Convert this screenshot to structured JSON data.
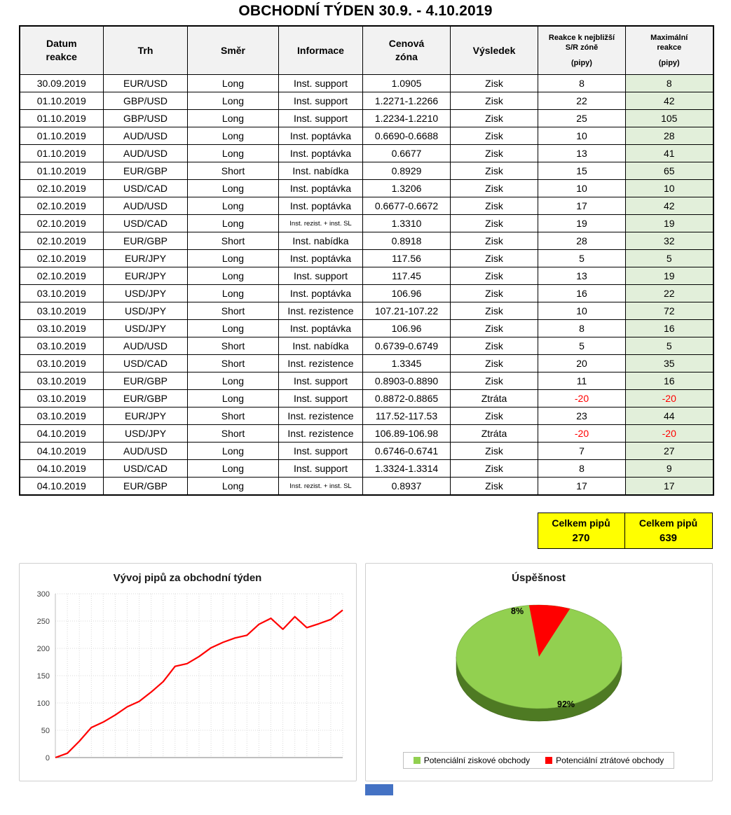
{
  "title": "OBCHODNÍ TÝDEN 30.9. - 4.10.2019",
  "colors": {
    "header_bg": "#f2f2f2",
    "max_col_bg": "#e2efda",
    "loss_text": "#ff0000",
    "summary_bg": "#ffff00"
  },
  "table": {
    "headers": [
      {
        "label": "Datum\nreakce",
        "sub": ""
      },
      {
        "label": "Trh",
        "sub": ""
      },
      {
        "label": "Směr",
        "sub": ""
      },
      {
        "label": "Informace",
        "sub": ""
      },
      {
        "label": "Cenová\nzóna",
        "sub": ""
      },
      {
        "label": "Výsledek",
        "sub": ""
      },
      {
        "label": "Reakce k nejbližší\nS/R zóně",
        "sub": "(pipy)"
      },
      {
        "label": "Maximální\nreakce",
        "sub": "(pipy)"
      }
    ],
    "rows": [
      [
        "30.09.2019",
        "EUR/USD",
        "Long",
        "Inst. support",
        "1.0905",
        "Zisk",
        "8",
        "8"
      ],
      [
        "01.10.2019",
        "GBP/USD",
        "Long",
        "Inst. support",
        "1.2271-1.2266",
        "Zisk",
        "22",
        "42"
      ],
      [
        "01.10.2019",
        "GBP/USD",
        "Long",
        "Inst. support",
        "1.2234-1.2210",
        "Zisk",
        "25",
        "105"
      ],
      [
        "01.10.2019",
        "AUD/USD",
        "Long",
        "Inst. poptávka",
        "0.6690-0.6688",
        "Zisk",
        "10",
        "28"
      ],
      [
        "01.10.2019",
        "AUD/USD",
        "Long",
        "Inst. poptávka",
        "0.6677",
        "Zisk",
        "13",
        "41"
      ],
      [
        "01.10.2019",
        "EUR/GBP",
        "Short",
        "Inst. nabídka",
        "0.8929",
        "Zisk",
        "15",
        "65"
      ],
      [
        "02.10.2019",
        "USD/CAD",
        "Long",
        "Inst. poptávka",
        "1.3206",
        "Zisk",
        "10",
        "10"
      ],
      [
        "02.10.2019",
        "AUD/USD",
        "Long",
        "Inst. poptávka",
        "0.6677-0.6672",
        "Zisk",
        "17",
        "42"
      ],
      [
        "02.10.2019",
        "USD/CAD",
        "Long",
        "Inst. rezist. + inst. SL",
        "1.3310",
        "Zisk",
        "19",
        "19"
      ],
      [
        "02.10.2019",
        "EUR/GBP",
        "Short",
        "Inst. nabídka",
        "0.8918",
        "Zisk",
        "28",
        "32"
      ],
      [
        "02.10.2019",
        "EUR/JPY",
        "Long",
        "Inst. poptávka",
        "117.56",
        "Zisk",
        "5",
        "5"
      ],
      [
        "02.10.2019",
        "EUR/JPY",
        "Long",
        "Inst. support",
        "117.45",
        "Zisk",
        "13",
        "19"
      ],
      [
        "03.10.2019",
        "USD/JPY",
        "Long",
        "Inst. poptávka",
        "106.96",
        "Zisk",
        "16",
        "22"
      ],
      [
        "03.10.2019",
        "USD/JPY",
        "Short",
        "Inst. rezistence",
        "107.21-107.22",
        "Zisk",
        "10",
        "72"
      ],
      [
        "03.10.2019",
        "USD/JPY",
        "Long",
        "Inst. poptávka",
        "106.96",
        "Zisk",
        "8",
        "16"
      ],
      [
        "03.10.2019",
        "AUD/USD",
        "Short",
        "Inst. nabídka",
        "0.6739-0.6749",
        "Zisk",
        "5",
        "5"
      ],
      [
        "03.10.2019",
        "USD/CAD",
        "Short",
        "Inst. rezistence",
        "1.3345",
        "Zisk",
        "20",
        "35"
      ],
      [
        "03.10.2019",
        "EUR/GBP",
        "Long",
        "Inst. support",
        "0.8903-0.8890",
        "Zisk",
        "11",
        "16"
      ],
      [
        "03.10.2019",
        "EUR/GBP",
        "Long",
        "Inst. support",
        "0.8872-0.8865",
        "Ztráta",
        "-20",
        "-20"
      ],
      [
        "03.10.2019",
        "EUR/JPY",
        "Short",
        "Inst. rezistence",
        "117.52-117.53",
        "Zisk",
        "23",
        "44"
      ],
      [
        "04.10.2019",
        "USD/JPY",
        "Short",
        "Inst. rezistence",
        "106.89-106.98",
        "Ztráta",
        "-20",
        "-20"
      ],
      [
        "04.10.2019",
        "AUD/USD",
        "Long",
        "Inst. support",
        "0.6746-0.6741",
        "Zisk",
        "7",
        "27"
      ],
      [
        "04.10.2019",
        "USD/CAD",
        "Long",
        "Inst. support",
        "1.3324-1.3314",
        "Zisk",
        "8",
        "9"
      ],
      [
        "04.10.2019",
        "EUR/GBP",
        "Long",
        "Inst. rezist. + inst. SL",
        "0.8937",
        "Zisk",
        "17",
        "17"
      ]
    ]
  },
  "summary": {
    "cells": [
      {
        "label": "Celkem pipů",
        "value": "270"
      },
      {
        "label": "Celkem pipů",
        "value": "639"
      }
    ]
  },
  "chart_data": [
    {
      "type": "line",
      "title": "Vývoj pipů za obchodní týden",
      "xlabel": "",
      "ylabel": "",
      "ylim": [
        0,
        300
      ],
      "yticks": [
        0,
        50,
        100,
        150,
        200,
        250,
        300
      ],
      "grid": true,
      "line_color": "#ff0000",
      "values": [
        0,
        8,
        30,
        55,
        65,
        78,
        93,
        103,
        120,
        139,
        167,
        172,
        185,
        201,
        211,
        219,
        224,
        244,
        255,
        235,
        258,
        238,
        245,
        253,
        270
      ]
    },
    {
      "type": "pie",
      "title": "Úspěšnost",
      "labels": [
        "Potenciální ziskové obchody",
        "Potenciální ztrátové obchody"
      ],
      "values": [
        92,
        8
      ],
      "data_labels": [
        "92%",
        "8%"
      ],
      "colors": [
        "#92d050",
        "#ff0000"
      ],
      "side_color": "#4e7a23",
      "legend_position": "bottom"
    }
  ]
}
